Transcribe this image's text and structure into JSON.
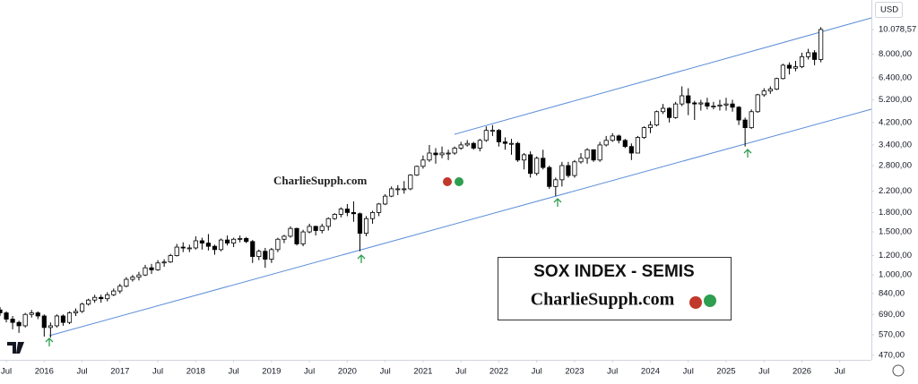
{
  "chart_data": {
    "type": "candlestick",
    "title": "SOX INDEX - SEMIS",
    "subtitle": "CharlieSupph.com",
    "watermark": "CharlieSupph.com",
    "currency": "USD",
    "log_scale": true,
    "grid": false,
    "up_color": "#ffffff",
    "down_color": "#000000",
    "x": [
      "2015-06",
      "2015-07",
      "2015-08",
      "2015-09",
      "2015-10",
      "2015-11",
      "2015-12",
      "2016-01",
      "2016-02",
      "2016-03",
      "2016-04",
      "2016-05",
      "2016-06",
      "2016-07",
      "2016-08",
      "2016-09",
      "2016-10",
      "2016-11",
      "2016-12",
      "2017-01",
      "2017-02",
      "2017-03",
      "2017-04",
      "2017-05",
      "2017-06",
      "2017-07",
      "2017-08",
      "2017-09",
      "2017-10",
      "2017-11",
      "2017-12",
      "2018-01",
      "2018-02",
      "2018-03",
      "2018-04",
      "2018-05",
      "2018-06",
      "2018-07",
      "2018-08",
      "2018-09",
      "2018-10",
      "2018-11",
      "2018-12",
      "2019-01",
      "2019-02",
      "2019-03",
      "2019-04",
      "2019-05",
      "2019-06",
      "2019-07",
      "2019-08",
      "2019-09",
      "2019-10",
      "2019-11",
      "2019-12",
      "2020-01",
      "2020-02",
      "2020-03",
      "2020-04",
      "2020-05",
      "2020-06",
      "2020-07",
      "2020-08",
      "2020-09",
      "2020-10",
      "2020-11",
      "2020-12",
      "2021-01",
      "2021-02",
      "2021-03",
      "2021-04",
      "2021-05",
      "2021-06",
      "2021-07",
      "2021-08",
      "2021-09",
      "2021-10",
      "2021-11",
      "2021-12",
      "2022-01",
      "2022-02",
      "2022-03",
      "2022-04",
      "2022-05",
      "2022-06",
      "2022-07",
      "2022-08",
      "2022-09",
      "2022-10",
      "2022-11",
      "2022-12",
      "2023-01",
      "2023-02",
      "2023-03",
      "2023-04",
      "2023-05",
      "2023-06",
      "2023-07",
      "2023-08",
      "2023-09",
      "2023-10",
      "2023-11",
      "2023-12",
      "2024-01",
      "2024-02",
      "2024-03",
      "2024-04",
      "2024-05",
      "2024-06",
      "2024-07",
      "2024-08",
      "2024-09",
      "2024-10",
      "2024-11",
      "2024-12",
      "2025-01",
      "2025-02",
      "2025-03",
      "2025-04",
      "2025-05",
      "2025-06",
      "2025-07",
      "2025-08",
      "2025-09",
      "2025-10",
      "2025-11",
      "2025-12",
      "2026-01",
      "2026-02",
      "2026-03",
      "2026-04"
    ],
    "open": [
      720,
      700,
      660,
      640,
      620,
      690,
      700,
      680,
      610,
      620,
      680,
      640,
      700,
      710,
      760,
      790,
      810,
      800,
      830,
      860,
      900,
      960,
      980,
      1000,
      1070,
      1050,
      1120,
      1130,
      1200,
      1300,
      1290,
      1290,
      1380,
      1350,
      1310,
      1270,
      1390,
      1350,
      1400,
      1410,
      1370,
      1190,
      1250,
      1160,
      1270,
      1400,
      1440,
      1550,
      1340,
      1500,
      1580,
      1520,
      1580,
      1700,
      1770,
      1860,
      1800,
      1780,
      1480,
      1700,
      1800,
      1950,
      2100,
      2250,
      2250,
      2250,
      2560,
      2780,
      2950,
      3150,
      3100,
      3150,
      3150,
      3300,
      3400,
      3450,
      3300,
      3550,
      3900,
      3900,
      3500,
      3450,
      3450,
      2950,
      3100,
      2600,
      3000,
      2750,
      2300,
      2450,
      2800,
      2550,
      2900,
      3000,
      3250,
      2950,
      3400,
      3550,
      3700,
      3550,
      3350,
      3150,
      3650,
      4000,
      4100,
      4650,
      4800,
      4400,
      5000,
      5400,
      5050,
      5000,
      5050,
      4900,
      4900,
      4950,
      5000,
      4850,
      4300,
      4000,
      4650,
      5450,
      5650,
      5750,
      6350,
      7200,
      7000,
      7100,
      7800,
      8100,
      7600
    ],
    "high": [
      740,
      710,
      680,
      650,
      700,
      720,
      710,
      690,
      640,
      690,
      690,
      710,
      730,
      770,
      800,
      830,
      830,
      850,
      880,
      920,
      980,
      1000,
      1030,
      1100,
      1110,
      1150,
      1160,
      1220,
      1340,
      1360,
      1330,
      1440,
      1420,
      1470,
      1330,
      1410,
      1450,
      1420,
      1450,
      1430,
      1390,
      1270,
      1290,
      1290,
      1420,
      1460,
      1580,
      1560,
      1530,
      1620,
      1590,
      1620,
      1720,
      1790,
      1890,
      1950,
      2000,
      1800,
      1740,
      1830,
      1970,
      2140,
      2300,
      2330,
      2420,
      2580,
      2800,
      3080,
      3400,
      3300,
      3350,
      3250,
      3350,
      3500,
      3560,
      3500,
      3600,
      4050,
      4100,
      3950,
      3650,
      3600,
      3500,
      3150,
      3200,
      3050,
      3250,
      2800,
      2500,
      2900,
      2900,
      2950,
      3150,
      3300,
      3250,
      3500,
      3700,
      3800,
      3750,
      3600,
      3450,
      3700,
      4050,
      4250,
      4700,
      5000,
      4850,
      5100,
      5900,
      5800,
      5150,
      5200,
      5300,
      5100,
      5200,
      5300,
      5200,
      4900,
      4400,
      4750,
      5500,
      5800,
      5900,
      6400,
      7300,
      7400,
      7500,
      8100,
      8400,
      8300,
      10300
    ],
    "low": [
      680,
      640,
      600,
      580,
      610,
      670,
      660,
      560,
      555,
      610,
      620,
      630,
      680,
      700,
      750,
      770,
      770,
      780,
      820,
      840,
      890,
      940,
      950,
      990,
      1010,
      1040,
      1080,
      1120,
      1190,
      1240,
      1240,
      1270,
      1270,
      1260,
      1210,
      1250,
      1320,
      1300,
      1360,
      1350,
      1120,
      1150,
      1070,
      1120,
      1240,
      1350,
      1420,
      1320,
      1310,
      1480,
      1450,
      1480,
      1520,
      1680,
      1720,
      1740,
      1650,
      1250,
      1440,
      1620,
      1740,
      1930,
      2080,
      2120,
      2150,
      2220,
      2540,
      2720,
      2900,
      2850,
      3000,
      2950,
      3100,
      3250,
      3350,
      3250,
      3200,
      3500,
      3700,
      3350,
      3250,
      3100,
      2900,
      2700,
      2500,
      2550,
      2700,
      2250,
      2100,
      2300,
      2500,
      2500,
      2850,
      2850,
      2900,
      2900,
      3350,
      3500,
      3450,
      3300,
      2950,
      3150,
      3600,
      3800,
      4050,
      4550,
      4200,
      4350,
      4900,
      4500,
      4300,
      4700,
      4750,
      4750,
      4700,
      4700,
      4650,
      4100,
      3350,
      3950,
      4600,
      5350,
      5500,
      5700,
      6300,
      6600,
      6800,
      7000,
      7600,
      7200,
      7400
    ],
    "close": [
      700,
      660,
      640,
      620,
      690,
      700,
      680,
      610,
      620,
      680,
      640,
      700,
      710,
      760,
      790,
      810,
      800,
      830,
      860,
      900,
      960,
      980,
      1000,
      1070,
      1050,
      1120,
      1130,
      1200,
      1300,
      1290,
      1290,
      1380,
      1350,
      1310,
      1270,
      1390,
      1350,
      1400,
      1410,
      1370,
      1190,
      1250,
      1160,
      1270,
      1400,
      1440,
      1550,
      1340,
      1500,
      1580,
      1520,
      1580,
      1700,
      1770,
      1860,
      1800,
      1780,
      1480,
      1700,
      1800,
      1950,
      2100,
      2250,
      2250,
      2250,
      2560,
      2780,
      2950,
      3150,
      3100,
      3150,
      3150,
      3300,
      3400,
      3450,
      3300,
      3550,
      3900,
      3900,
      3500,
      3450,
      3450,
      2950,
      3100,
      2600,
      3000,
      2750,
      2300,
      2450,
      2800,
      2550,
      2900,
      3000,
      3250,
      2950,
      3400,
      3550,
      3700,
      3550,
      3350,
      3150,
      3650,
      4000,
      4100,
      4650,
      4800,
      4400,
      5000,
      5400,
      5050,
      5000,
      5050,
      4900,
      4900,
      4950,
      5000,
      4850,
      4300,
      4000,
      4650,
      5450,
      5650,
      5750,
      6350,
      7200,
      7000,
      7100,
      7800,
      8100,
      7600,
      10078.57
    ],
    "xlim": [
      "2015-06",
      "2026-12"
    ],
    "xticks": [
      {
        "value": "2015-07",
        "label": "Jul"
      },
      {
        "value": "2016-01",
        "label": "2016"
      },
      {
        "value": "2016-07",
        "label": "Jul"
      },
      {
        "value": "2017-01",
        "label": "2017"
      },
      {
        "value": "2017-07",
        "label": "Jul"
      },
      {
        "value": "2018-01",
        "label": "2018"
      },
      {
        "value": "2018-07",
        "label": "Jul"
      },
      {
        "value": "2019-01",
        "label": "2019"
      },
      {
        "value": "2019-07",
        "label": "Jul"
      },
      {
        "value": "2020-01",
        "label": "2020"
      },
      {
        "value": "2020-07",
        "label": "Jul"
      },
      {
        "value": "2021-01",
        "label": "2021"
      },
      {
        "value": "2021-07",
        "label": "Jul"
      },
      {
        "value": "2022-01",
        "label": "2022"
      },
      {
        "value": "2022-07",
        "label": "Jul"
      },
      {
        "value": "2023-01",
        "label": "2023"
      },
      {
        "value": "2023-07",
        "label": "Jul"
      },
      {
        "value": "2024-01",
        "label": "2024"
      },
      {
        "value": "2024-07",
        "label": "Jul"
      },
      {
        "value": "2025-01",
        "label": "2025"
      },
      {
        "value": "2025-07",
        "label": "Jul"
      },
      {
        "value": "2026-01",
        "label": "2026"
      },
      {
        "value": "2026-07",
        "label": "Jul"
      }
    ],
    "ylim": [
      450,
      13300
    ],
    "yticks": [
      {
        "value": 470,
        "label": "470,00"
      },
      {
        "value": 570,
        "label": "570,00"
      },
      {
        "value": 690,
        "label": "690,00"
      },
      {
        "value": 840,
        "label": "840,00"
      },
      {
        "value": 1000,
        "label": "1.000,00"
      },
      {
        "value": 1200,
        "label": "1.200,00"
      },
      {
        "value": 1500,
        "label": "1.500,00"
      },
      {
        "value": 1800,
        "label": "1.800,00"
      },
      {
        "value": 2200,
        "label": "2.200,00"
      },
      {
        "value": 2800,
        "label": "2.800,00"
      },
      {
        "value": 3400,
        "label": "3.400,00"
      },
      {
        "value": 4200,
        "label": "4.200,00"
      },
      {
        "value": 5200,
        "label": "5.200,00"
      },
      {
        "value": 6400,
        "label": "6.400,00"
      },
      {
        "value": 8000,
        "label": "8.000,00"
      },
      {
        "value": 10078.57,
        "label": "10.078,57"
      }
    ]
  }
}
